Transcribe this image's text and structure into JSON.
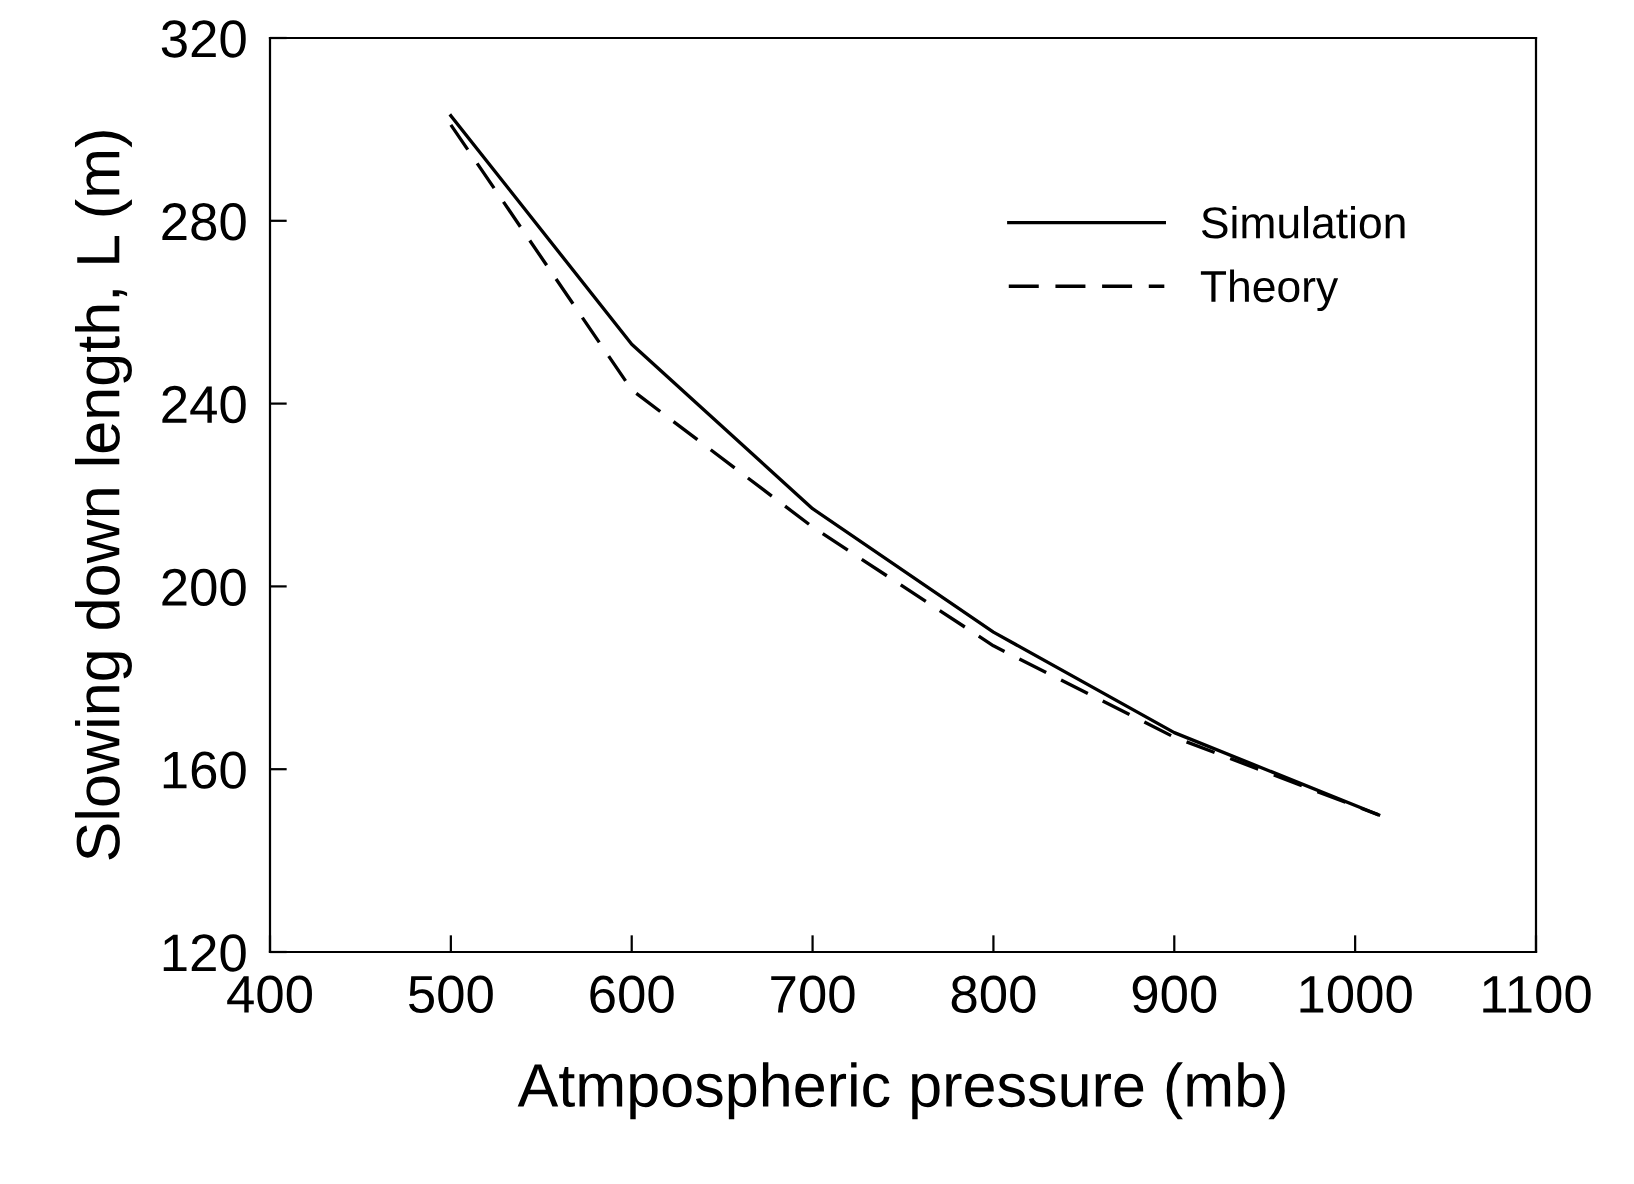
{
  "chart_data": {
    "type": "line",
    "xlabel": "Atmpospheric pressure (mb)",
    "ylabel": "Slowing down length, L (m)",
    "xlim": [
      400,
      1100
    ],
    "xticks": [
      400,
      500,
      600,
      700,
      800,
      900,
      1000,
      1100
    ],
    "ylim": [
      120,
      320
    ],
    "yticks": [
      120,
      160,
      200,
      240,
      280,
      320
    ],
    "x": [
      500,
      600,
      700,
      800,
      900,
      1013
    ],
    "series": [
      {
        "name": "Simulation",
        "color": "#000000",
        "line_style": "solid",
        "values": [
          303,
          253,
          217,
          190,
          168,
          150
        ]
      },
      {
        "name": "Theory",
        "color": "#000000",
        "line_style": "dashed",
        "values": [
          301,
          243,
          213,
          187,
          167,
          150
        ]
      }
    ],
    "legend": "top right",
    "grid": false,
    "marker": "none"
  }
}
